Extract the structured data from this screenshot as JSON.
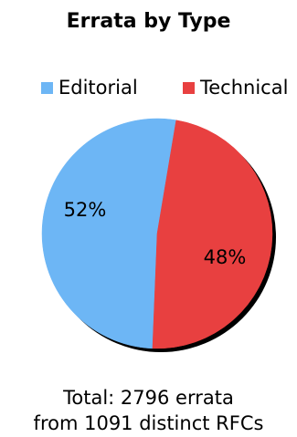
{
  "chart_data": {
    "type": "pie",
    "title": "Errata by Type",
    "legend_position": "top",
    "slices": [
      {
        "name": "Editorial",
        "value": 52,
        "label": "52%",
        "color": "#6db6f5"
      },
      {
        "name": "Technical",
        "value": 48,
        "label": "48%",
        "color": "#e84040"
      }
    ],
    "footer": {
      "line1": "Total: 2796 errata",
      "line2": "from 1091 distinct RFCs"
    }
  }
}
